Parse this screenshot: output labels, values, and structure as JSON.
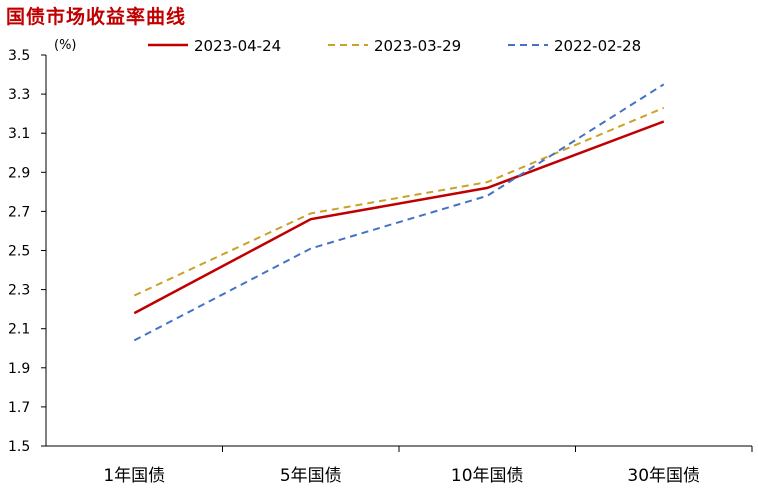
{
  "header": {
    "title": "国债市场收益率曲线"
  },
  "chart_data": {
    "type": "line",
    "title": "国债市场收益率曲线",
    "xlabel": "",
    "ylabel": "(%)",
    "categories": [
      "1年国债",
      "5年国债",
      "10年国债",
      "30年国债"
    ],
    "ylim": [
      1.5,
      3.5
    ],
    "yticks": [
      1.5,
      1.7,
      1.9,
      2.1,
      2.3,
      2.5,
      2.7,
      2.9,
      3.1,
      3.3,
      3.5
    ],
    "grid": false,
    "legend": "top",
    "series": [
      {
        "name": "2023-04-24",
        "values": [
          2.18,
          2.66,
          2.82,
          3.16
        ],
        "color": "#C00000",
        "style": "solid"
      },
      {
        "name": "2023-03-29",
        "values": [
          2.27,
          2.69,
          2.85,
          3.23
        ],
        "color": "#C9A227",
        "style": "dashed"
      },
      {
        "name": "2022-02-28",
        "values": [
          2.04,
          2.51,
          2.78,
          3.35
        ],
        "color": "#4472C4",
        "style": "dashed"
      }
    ]
  }
}
